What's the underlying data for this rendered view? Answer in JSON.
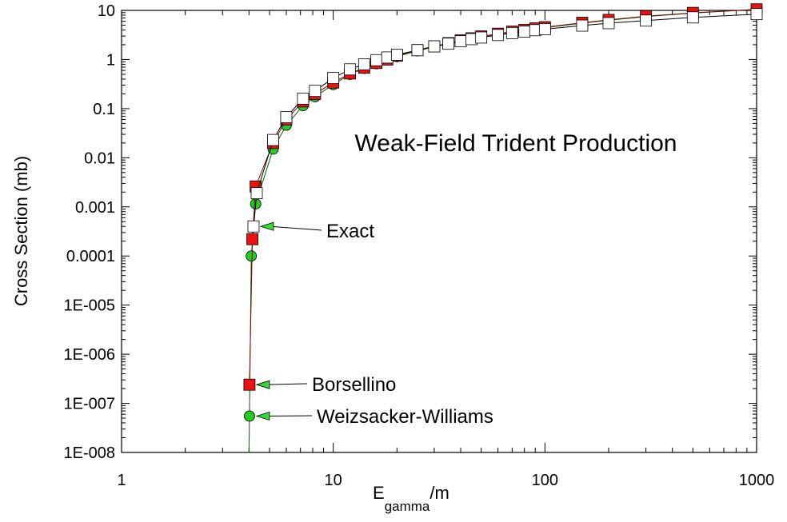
{
  "chart_data": {
    "type": "scatter",
    "title": "Weak-Field Trident Production",
    "xlabel": {
      "base": "E",
      "sub": "gamma",
      "suffix": "/m"
    },
    "ylabel": "Cross Section (mb)",
    "x_scale": "log",
    "y_scale": "log",
    "xlim": [
      1,
      1000
    ],
    "ylim": [
      1e-08,
      10
    ],
    "grid": false,
    "x_ticks": [
      {
        "value": 1,
        "label": "1"
      },
      {
        "value": 10,
        "label": "10"
      },
      {
        "value": 100,
        "label": "100"
      },
      {
        "value": 1000,
        "label": "1000"
      }
    ],
    "y_ticks": [
      {
        "value": 1e-08,
        "label": "1E-008"
      },
      {
        "value": 1e-07,
        "label": "1E-007"
      },
      {
        "value": 1e-06,
        "label": "1E-006"
      },
      {
        "value": 1e-05,
        "label": "1E-005"
      },
      {
        "value": 0.0001,
        "label": "0.0001"
      },
      {
        "value": 0.001,
        "label": "0.001"
      },
      {
        "value": 0.01,
        "label": "0.01"
      },
      {
        "value": 0.1,
        "label": "0.1"
      },
      {
        "value": 1,
        "label": "1"
      },
      {
        "value": 10,
        "label": "10"
      }
    ],
    "series": [
      {
        "marker": "circle",
        "color": "#22cc22",
        "x": [
          4.02,
          4.1,
          4.3,
          5.2,
          6,
          7.2,
          8.2,
          10,
          12,
          14,
          16,
          18,
          20,
          25,
          30,
          35,
          40,
          45,
          50,
          60,
          70,
          80,
          90,
          100,
          150,
          200,
          300,
          500,
          1000
        ],
        "y": [
          5.5e-08,
          0.0001,
          0.00115,
          0.015,
          0.046,
          0.115,
          0.175,
          0.31,
          0.5,
          0.66,
          0.82,
          0.98,
          1.15,
          1.5,
          1.82,
          2.1,
          2.4,
          2.65,
          2.9,
          3.3,
          3.6,
          3.9,
          4.2,
          4.45,
          5.5,
          6.3,
          7.5,
          8.8,
          10.5
        ]
      },
      {
        "marker": "square",
        "color": "#ee1111",
        "x": [
          4.02,
          4.15,
          4.3,
          5.2,
          6,
          7.2,
          8.2,
          10,
          12,
          14,
          16,
          18,
          20,
          25,
          30,
          35,
          40,
          45,
          50,
          60,
          70,
          80,
          90,
          100,
          150,
          200,
          300,
          500,
          1000
        ],
        "y": [
          2.4e-07,
          0.00022,
          0.0026,
          0.02,
          0.06,
          0.14,
          0.2,
          0.34,
          0.52,
          0.68,
          0.85,
          1.0,
          1.2,
          1.55,
          1.85,
          2.15,
          2.45,
          2.7,
          2.95,
          3.35,
          3.7,
          4.0,
          4.3,
          4.55,
          5.6,
          6.4,
          7.6,
          8.9,
          10.5
        ]
      },
      {
        "marker": "square",
        "color": "#ffffff",
        "x": [
          4.2,
          4.35,
          5.2,
          6,
          7.2,
          8.2,
          10,
          12,
          14,
          16,
          18,
          20,
          25,
          30,
          35,
          40,
          45,
          50,
          60,
          70,
          80,
          90,
          100,
          150,
          200,
          300,
          500,
          1000
        ],
        "y": [
          0.0004,
          0.0019,
          0.023,
          0.067,
          0.16,
          0.23,
          0.42,
          0.63,
          0.8,
          0.97,
          1.1,
          1.25,
          1.55,
          1.85,
          2.1,
          2.35,
          2.6,
          2.8,
          3.15,
          3.45,
          3.7,
          3.95,
          4.15,
          4.9,
          5.5,
          6.2,
          7.2,
          8.4
        ]
      }
    ],
    "annotations": [
      {
        "text": "Exact",
        "point": [
          4.2,
          0.0004
        ],
        "label_at": [
          30,
          0.0003
        ]
      },
      {
        "text": "Borsellino",
        "point": [
          4.02,
          2.4e-07
        ],
        "label_at": [
          30,
          2.4e-07
        ]
      },
      {
        "text": "Weizsacker-Williams",
        "point": [
          4.02,
          5.5e-08
        ],
        "label_at": [
          30,
          5.5e-08
        ]
      }
    ]
  }
}
